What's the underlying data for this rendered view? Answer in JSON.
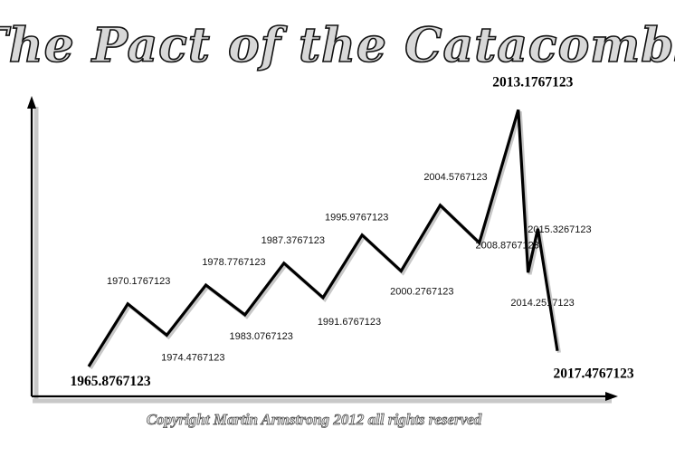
{
  "chart_data": {
    "type": "line",
    "title": "The Pact of the Catacombs",
    "xlabel": "",
    "ylabel": "",
    "grid": false,
    "points": [
      {
        "label": "1965.8767123",
        "y": 0,
        "emphasis": true
      },
      {
        "label": "1970.1767123",
        "y": 2.0,
        "emphasis": false
      },
      {
        "label": "1974.4767123",
        "y": 1.0,
        "emphasis": false
      },
      {
        "label": "1978.7767123",
        "y": 2.6,
        "emphasis": false
      },
      {
        "label": "1983.0767123",
        "y": 1.65,
        "emphasis": false
      },
      {
        "label": "1987.3767123",
        "y": 3.3,
        "emphasis": false
      },
      {
        "label": "1991.6767123",
        "y": 2.2,
        "emphasis": false
      },
      {
        "label": "1995.9767123",
        "y": 4.2,
        "emphasis": false
      },
      {
        "label": "2000.2767123",
        "y": 3.05,
        "emphasis": false
      },
      {
        "label": "2004.5767123",
        "y": 5.15,
        "emphasis": false
      },
      {
        "label": "2008.8767123",
        "y": 3.95,
        "emphasis": false
      },
      {
        "label": "2013.1767123",
        "y": 8.2,
        "emphasis": true
      },
      {
        "label": "2014.2517123",
        "y": 3.0,
        "emphasis": false
      },
      {
        "label": "2015.3267123",
        "y": 4.4,
        "emphasis": false
      },
      {
        "label": "2017.4767123",
        "y": 0.5,
        "emphasis": true
      }
    ]
  },
  "copyright": "Copyright Martin Armstrong 2012 all rights reserved",
  "colors": {
    "line": "#000000",
    "axis": "#000000",
    "shadow": "#c8c8c8"
  }
}
